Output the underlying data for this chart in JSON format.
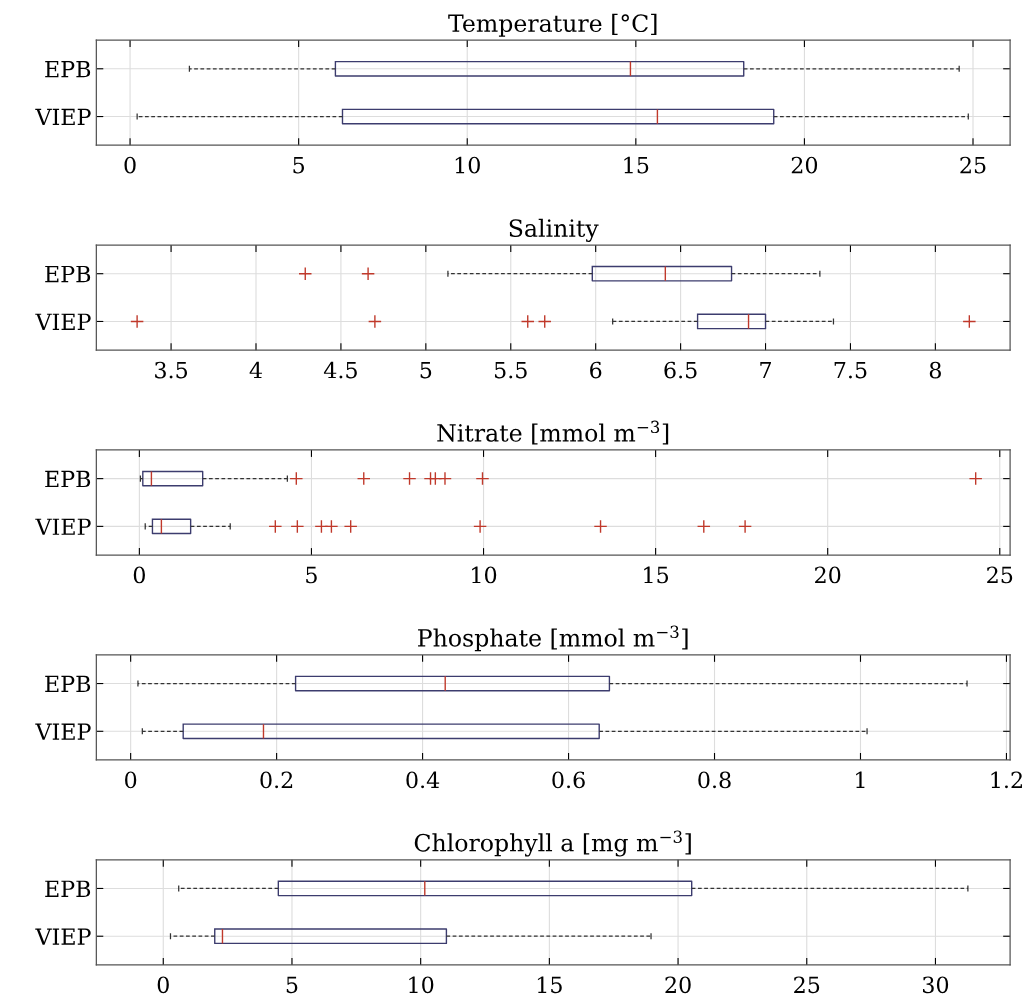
{
  "chart_data": [
    {
      "type": "box",
      "orientation": "horizontal",
      "title": "Temperature [°C]",
      "categories": [
        "EPB",
        "VIEP"
      ],
      "xlim": [
        -1.0,
        26.1
      ],
      "xticks": [
        0,
        5,
        10,
        15,
        20,
        25
      ],
      "grid": true,
      "boxes": [
        {
          "low": 1.76,
          "q1": 6.09,
          "median": 14.84,
          "q3": 18.2,
          "high": 24.59
        },
        {
          "low": 0.21,
          "q1": 6.3,
          "median": 15.64,
          "q3": 19.09,
          "high": 24.86
        }
      ]
    },
    {
      "type": "box",
      "orientation": "horizontal",
      "title": "Salinity",
      "categories": [
        "EPB",
        "VIEP"
      ],
      "xlim": [
        3.06,
        8.44
      ],
      "xticks": [
        3.5,
        4,
        4.5,
        5,
        5.5,
        6,
        6.5,
        7,
        7.5,
        8
      ],
      "grid": true,
      "boxes": [
        {
          "low": 5.13,
          "q1": 5.98,
          "median": 6.41,
          "q3": 6.8,
          "high": 7.32,
          "outliers": [
            4.29,
            4.66
          ]
        },
        {
          "low": 6.1,
          "q1": 6.6,
          "median": 6.9,
          "q3": 7.0,
          "high": 7.4,
          "outliers": [
            3.3,
            4.7,
            5.6,
            5.7,
            8.2
          ]
        }
      ]
    },
    {
      "type": "box",
      "orientation": "horizontal",
      "title": "Nitrate [mmol m$^{−3}$]",
      "categories": [
        "EPB",
        "VIEP"
      ],
      "xlim": [
        -1.25,
        25.3
      ],
      "xticks": [
        0,
        5,
        10,
        15,
        20,
        25
      ],
      "grid": true,
      "boxes": [
        {
          "low": 0.03,
          "q1": 0.1,
          "median": 0.35,
          "q3": 1.84,
          "high": 4.3,
          "outliers": [
            4.56,
            6.52,
            7.85,
            8.46,
            8.6,
            8.88,
            9.97,
            24.3
          ]
        },
        {
          "low": 0.17,
          "q1": 0.38,
          "median": 0.64,
          "q3": 1.49,
          "high": 2.64,
          "outliers": [
            3.95,
            4.59,
            5.29,
            5.58,
            6.14,
            9.9,
            13.4,
            16.4,
            17.6
          ]
        }
      ]
    },
    {
      "type": "box",
      "orientation": "horizontal",
      "title": "Phosphate [mmol m$^{−3}$]",
      "categories": [
        "EPB",
        "VIEP"
      ],
      "xlim": [
        -0.047,
        1.205
      ],
      "xticks": [
        0,
        0.2,
        0.4,
        0.6,
        0.8,
        1,
        1.2
      ],
      "grid": true,
      "boxes": [
        {
          "low": 0.01,
          "q1": 0.226,
          "median": 0.431,
          "q3": 0.656,
          "high": 1.146
        },
        {
          "low": 0.016,
          "q1": 0.072,
          "median": 0.182,
          "q3": 0.642,
          "high": 1.009
        }
      ]
    },
    {
      "type": "box",
      "orientation": "horizontal",
      "title": "Chlorophyll a [mg m$^{−3}$]",
      "categories": [
        "EPB",
        "VIEP"
      ],
      "xlim": [
        -2.6,
        32.9
      ],
      "xticks": [
        0,
        5,
        10,
        15,
        20,
        25,
        30
      ],
      "grid": true,
      "boxes": [
        {
          "low": 0.6,
          "q1": 4.47,
          "median": 10.16,
          "q3": 20.53,
          "high": 31.26
        },
        {
          "low": 0.28,
          "q1": 2.0,
          "median": 2.3,
          "q3": 11.0,
          "high": 18.95
        }
      ]
    }
  ]
}
